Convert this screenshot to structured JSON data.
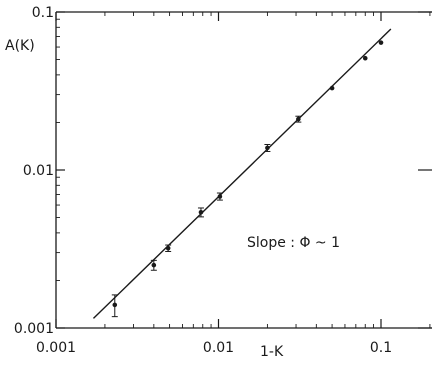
{
  "chart_data": {
    "type": "scatter",
    "xscale": "log",
    "yscale": "log",
    "xlim": [
      0.001,
      0.2
    ],
    "ylim": [
      0.001,
      0.1
    ],
    "xlabel": "1-K",
    "ylabel": "A(K)",
    "xticks": [
      0.001,
      0.01,
      0.1
    ],
    "xtick_labels": [
      "0.001",
      "0.01",
      "0.1"
    ],
    "yticks": [
      0.001,
      0.01,
      0.1
    ],
    "ytick_labels": [
      "0.001",
      "0.01",
      "0.1"
    ],
    "grid": false,
    "annotation": "Slope : Φ ~ 1",
    "series": [
      {
        "points": [
          {
            "x": 0.0023,
            "y": 0.0014,
            "err": 0.00022
          },
          {
            "x": 0.004,
            "y": 0.0025,
            "err": 0.00018
          },
          {
            "x": 0.0049,
            "y": 0.0032,
            "err": 0.00015
          },
          {
            "x": 0.0078,
            "y": 0.0054,
            "err": 0.00035
          },
          {
            "x": 0.0102,
            "y": 0.0068,
            "err": 0.00035
          },
          {
            "x": 0.02,
            "y": 0.0138,
            "err": 0.0007
          },
          {
            "x": 0.031,
            "y": 0.021,
            "err": 0.0009
          },
          {
            "x": 0.05,
            "y": 0.033,
            "err": 0.0
          },
          {
            "x": 0.08,
            "y": 0.051,
            "err": 0.0
          },
          {
            "x": 0.1,
            "y": 0.064,
            "err": 0.0
          }
        ]
      }
    ],
    "fit_line": {
      "x": [
        0.0017,
        0.115
      ],
      "y": [
        0.00115,
        0.078
      ]
    }
  }
}
